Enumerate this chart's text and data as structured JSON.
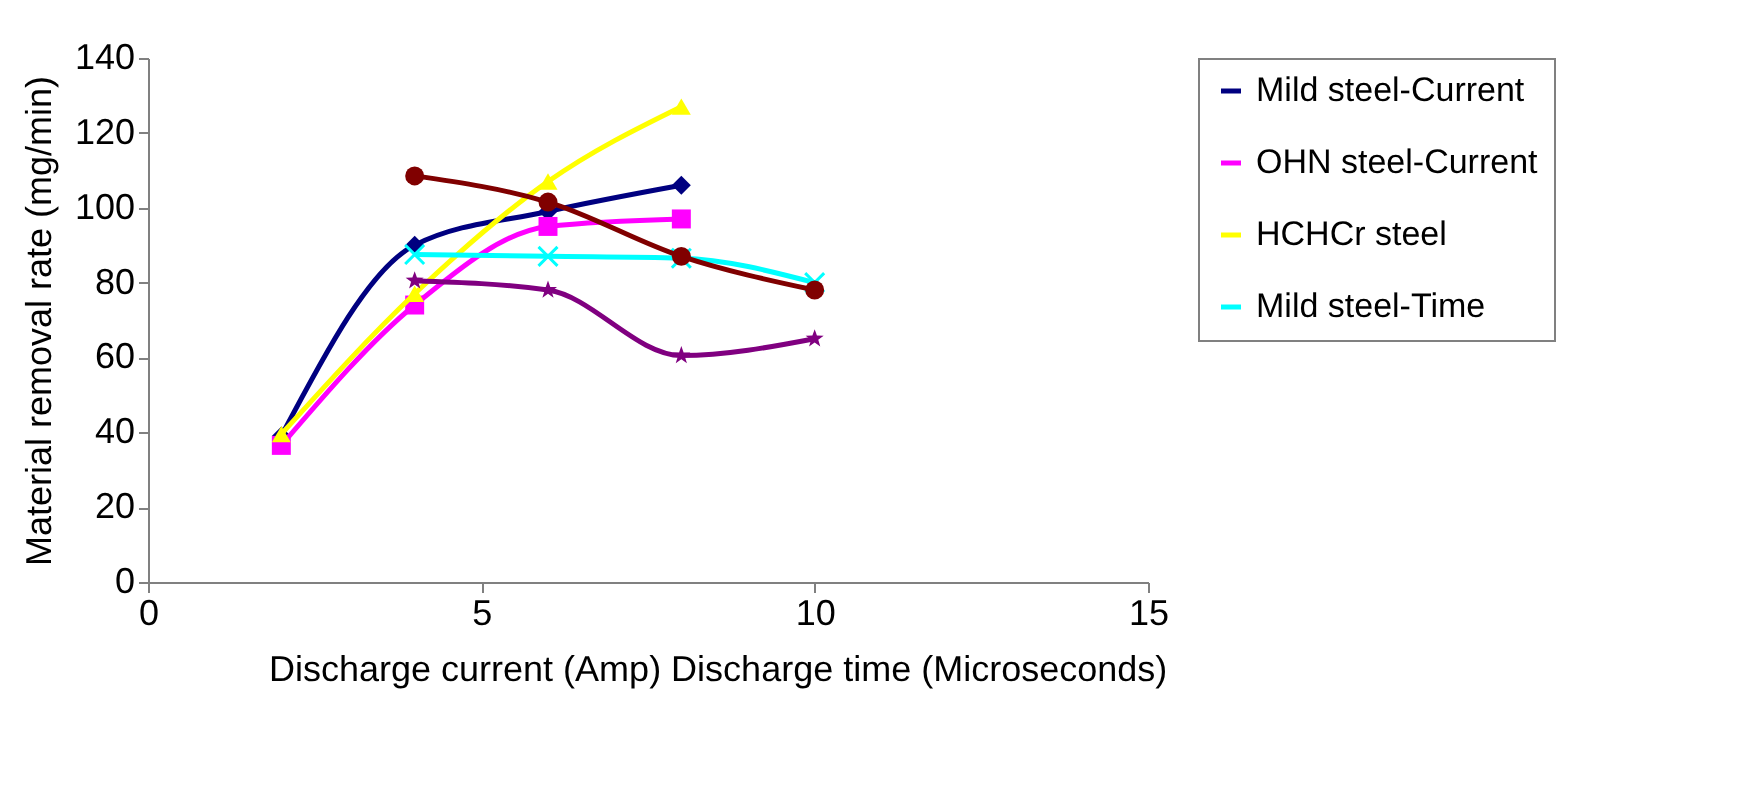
{
  "chart_data": {
    "type": "line",
    "xlabel": "Discharge current (Amp)    Discharge time (Microseconds)",
    "ylabel": "Material removal rate (mg/min)",
    "xlim": [
      0,
      15
    ],
    "xticks": [
      0,
      5,
      10,
      15
    ],
    "ylim": [
      0,
      140
    ],
    "yticks": [
      0,
      20,
      40,
      60,
      80,
      100,
      120,
      140
    ],
    "grid": false,
    "legend": "right",
    "series": [
      {
        "name": "Mild steel-Current",
        "color": "#000080",
        "marker": "diamond",
        "x": [
          2,
          4,
          6,
          8
        ],
        "values": [
          39,
          90,
          99,
          106
        ]
      },
      {
        "name": "OHN steel-Current",
        "color": "#ff00ff",
        "marker": "square",
        "x": [
          2,
          4,
          6,
          8
        ],
        "values": [
          36.5,
          74,
          95,
          97
        ]
      },
      {
        "name": "HCHCr steel",
        "color": "#ffff00",
        "marker": "triangle",
        "x": [
          2,
          4,
          6,
          8
        ],
        "values": [
          39.5,
          77,
          107,
          127
        ]
      },
      {
        "name": "Mild steel-Time",
        "color": "#00ffff",
        "marker": "cross",
        "x": [
          4,
          6,
          8,
          10
        ],
        "values": [
          87.5,
          87,
          86.5,
          80
        ]
      },
      {
        "color": "#800000",
        "marker": "circle",
        "x": [
          4,
          6,
          8,
          10
        ],
        "values": [
          108.5,
          101.5,
          87,
          78
        ]
      },
      {
        "color": "#800080",
        "marker": "star",
        "x": [
          4,
          6,
          8,
          10
        ],
        "values": [
          80.5,
          78,
          60.5,
          65
        ]
      }
    ]
  }
}
